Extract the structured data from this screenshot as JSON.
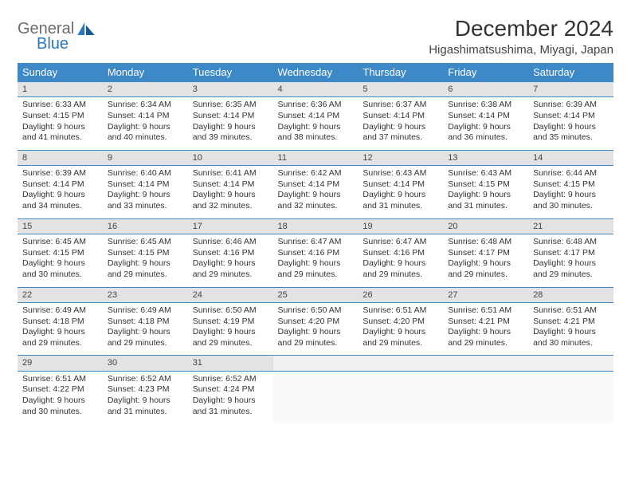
{
  "brand": {
    "general": "General",
    "blue": "Blue"
  },
  "title": "December 2024",
  "location": "Higashimatsushima, Miyagi, Japan",
  "colors": {
    "header_bg": "#3d88c7",
    "header_text": "#ffffff",
    "daynum_bg": "#e3e3e3",
    "border": "#3d88c7",
    "logo_gray": "#6b6b6b",
    "logo_blue": "#2878bd"
  },
  "weekdays": [
    "Sunday",
    "Monday",
    "Tuesday",
    "Wednesday",
    "Thursday",
    "Friday",
    "Saturday"
  ],
  "weeks": [
    [
      {
        "n": "1",
        "sr": "6:33 AM",
        "ss": "4:15 PM",
        "dl": "9 hours and 41 minutes."
      },
      {
        "n": "2",
        "sr": "6:34 AM",
        "ss": "4:14 PM",
        "dl": "9 hours and 40 minutes."
      },
      {
        "n": "3",
        "sr": "6:35 AM",
        "ss": "4:14 PM",
        "dl": "9 hours and 39 minutes."
      },
      {
        "n": "4",
        "sr": "6:36 AM",
        "ss": "4:14 PM",
        "dl": "9 hours and 38 minutes."
      },
      {
        "n": "5",
        "sr": "6:37 AM",
        "ss": "4:14 PM",
        "dl": "9 hours and 37 minutes."
      },
      {
        "n": "6",
        "sr": "6:38 AM",
        "ss": "4:14 PM",
        "dl": "9 hours and 36 minutes."
      },
      {
        "n": "7",
        "sr": "6:39 AM",
        "ss": "4:14 PM",
        "dl": "9 hours and 35 minutes."
      }
    ],
    [
      {
        "n": "8",
        "sr": "6:39 AM",
        "ss": "4:14 PM",
        "dl": "9 hours and 34 minutes."
      },
      {
        "n": "9",
        "sr": "6:40 AM",
        "ss": "4:14 PM",
        "dl": "9 hours and 33 minutes."
      },
      {
        "n": "10",
        "sr": "6:41 AM",
        "ss": "4:14 PM",
        "dl": "9 hours and 32 minutes."
      },
      {
        "n": "11",
        "sr": "6:42 AM",
        "ss": "4:14 PM",
        "dl": "9 hours and 32 minutes."
      },
      {
        "n": "12",
        "sr": "6:43 AM",
        "ss": "4:14 PM",
        "dl": "9 hours and 31 minutes."
      },
      {
        "n": "13",
        "sr": "6:43 AM",
        "ss": "4:15 PM",
        "dl": "9 hours and 31 minutes."
      },
      {
        "n": "14",
        "sr": "6:44 AM",
        "ss": "4:15 PM",
        "dl": "9 hours and 30 minutes."
      }
    ],
    [
      {
        "n": "15",
        "sr": "6:45 AM",
        "ss": "4:15 PM",
        "dl": "9 hours and 30 minutes."
      },
      {
        "n": "16",
        "sr": "6:45 AM",
        "ss": "4:15 PM",
        "dl": "9 hours and 29 minutes."
      },
      {
        "n": "17",
        "sr": "6:46 AM",
        "ss": "4:16 PM",
        "dl": "9 hours and 29 minutes."
      },
      {
        "n": "18",
        "sr": "6:47 AM",
        "ss": "4:16 PM",
        "dl": "9 hours and 29 minutes."
      },
      {
        "n": "19",
        "sr": "6:47 AM",
        "ss": "4:16 PM",
        "dl": "9 hours and 29 minutes."
      },
      {
        "n": "20",
        "sr": "6:48 AM",
        "ss": "4:17 PM",
        "dl": "9 hours and 29 minutes."
      },
      {
        "n": "21",
        "sr": "6:48 AM",
        "ss": "4:17 PM",
        "dl": "9 hours and 29 minutes."
      }
    ],
    [
      {
        "n": "22",
        "sr": "6:49 AM",
        "ss": "4:18 PM",
        "dl": "9 hours and 29 minutes."
      },
      {
        "n": "23",
        "sr": "6:49 AM",
        "ss": "4:18 PM",
        "dl": "9 hours and 29 minutes."
      },
      {
        "n": "24",
        "sr": "6:50 AM",
        "ss": "4:19 PM",
        "dl": "9 hours and 29 minutes."
      },
      {
        "n": "25",
        "sr": "6:50 AM",
        "ss": "4:20 PM",
        "dl": "9 hours and 29 minutes."
      },
      {
        "n": "26",
        "sr": "6:51 AM",
        "ss": "4:20 PM",
        "dl": "9 hours and 29 minutes."
      },
      {
        "n": "27",
        "sr": "6:51 AM",
        "ss": "4:21 PM",
        "dl": "9 hours and 29 minutes."
      },
      {
        "n": "28",
        "sr": "6:51 AM",
        "ss": "4:21 PM",
        "dl": "9 hours and 30 minutes."
      }
    ],
    [
      {
        "n": "29",
        "sr": "6:51 AM",
        "ss": "4:22 PM",
        "dl": "9 hours and 30 minutes."
      },
      {
        "n": "30",
        "sr": "6:52 AM",
        "ss": "4:23 PM",
        "dl": "9 hours and 31 minutes."
      },
      {
        "n": "31",
        "sr": "6:52 AM",
        "ss": "4:24 PM",
        "dl": "9 hours and 31 minutes."
      },
      null,
      null,
      null,
      null
    ]
  ],
  "labels": {
    "sunrise": "Sunrise:",
    "sunset": "Sunset:",
    "daylight": "Daylight:"
  }
}
